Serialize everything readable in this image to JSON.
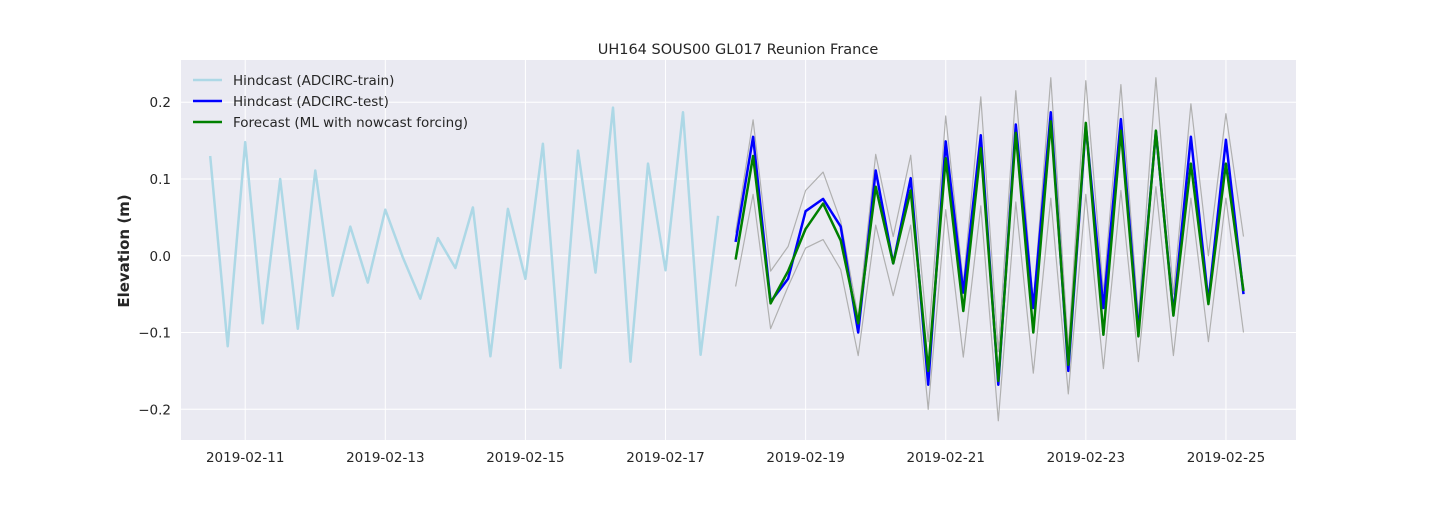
{
  "chart_data": {
    "type": "line",
    "title": "UH164 SOUS00 GL017 Reunion France",
    "xlabel": "",
    "ylabel": "Elevation (m)",
    "x_unit": "date",
    "xlim": [
      "2019-02-10T02:00",
      "2019-02-26T00:00"
    ],
    "ylim": [
      -0.24,
      0.255
    ],
    "xticks": [
      {
        "value": "2019-02-11T00:00",
        "label": "2019-02-11"
      },
      {
        "value": "2019-02-13T00:00",
        "label": "2019-02-13"
      },
      {
        "value": "2019-02-15T00:00",
        "label": "2019-02-15"
      },
      {
        "value": "2019-02-17T00:00",
        "label": "2019-02-17"
      },
      {
        "value": "2019-02-19T00:00",
        "label": "2019-02-19"
      },
      {
        "value": "2019-02-21T00:00",
        "label": "2019-02-21"
      },
      {
        "value": "2019-02-23T00:00",
        "label": "2019-02-23"
      },
      {
        "value": "2019-02-25T00:00",
        "label": "2019-02-25"
      }
    ],
    "yticks": [
      {
        "value": 0.2,
        "label": "0.2"
      },
      {
        "value": 0.1,
        "label": "0.1"
      },
      {
        "value": 0.0,
        "label": "0.0"
      },
      {
        "value": -0.1,
        "label": "−0.1"
      },
      {
        "value": -0.2,
        "label": "−0.2"
      }
    ],
    "grid": true,
    "legend_position": "top-left",
    "background": "#eaeaf2",
    "series": [
      {
        "name": "Hindcast (ADCIRC-train)",
        "color": "#add8e6",
        "in_legend": true,
        "x": [
          "2019-02-10T12:00",
          "2019-02-10T18:00",
          "2019-02-11T00:00",
          "2019-02-11T06:00",
          "2019-02-11T12:00",
          "2019-02-11T18:00",
          "2019-02-12T00:00",
          "2019-02-12T06:00",
          "2019-02-12T12:00",
          "2019-02-12T18:00",
          "2019-02-13T00:00",
          "2019-02-13T06:00",
          "2019-02-13T12:00",
          "2019-02-13T18:00",
          "2019-02-14T00:00",
          "2019-02-14T06:00",
          "2019-02-14T12:00",
          "2019-02-14T18:00",
          "2019-02-15T00:00",
          "2019-02-15T06:00",
          "2019-02-15T12:00",
          "2019-02-15T18:00",
          "2019-02-16T00:00",
          "2019-02-16T06:00",
          "2019-02-16T12:00",
          "2019-02-16T18:00",
          "2019-02-17T00:00",
          "2019-02-17T06:00",
          "2019-02-17T12:00",
          "2019-02-17T18:00"
        ],
        "y": [
          0.13,
          -0.118,
          0.148,
          -0.088,
          0.1,
          -0.095,
          0.111,
          -0.052,
          0.038,
          -0.035,
          0.06,
          -0.002,
          -0.056,
          0.023,
          -0.016,
          0.063,
          -0.131,
          0.061,
          -0.03,
          0.146,
          -0.146,
          0.137,
          -0.022,
          0.193,
          -0.138,
          0.12,
          -0.019,
          0.187,
          -0.129,
          0.052
        ]
      },
      {
        "name": "",
        "color": "#b0b0b0",
        "in_legend": false,
        "x": [
          "2019-02-18T00:00",
          "2019-02-18T06:00",
          "2019-02-18T12:00",
          "2019-02-18T18:00",
          "2019-02-19T00:00",
          "2019-02-19T06:00",
          "2019-02-19T12:00",
          "2019-02-19T18:00",
          "2019-02-20T00:00",
          "2019-02-20T06:00",
          "2019-02-20T12:00",
          "2019-02-20T18:00",
          "2019-02-21T00:00",
          "2019-02-21T06:00",
          "2019-02-21T12:00",
          "2019-02-21T18:00",
          "2019-02-22T00:00",
          "2019-02-22T06:00",
          "2019-02-22T12:00",
          "2019-02-22T18:00",
          "2019-02-23T00:00",
          "2019-02-23T06:00",
          "2019-02-23T12:00",
          "2019-02-23T18:00",
          "2019-02-24T00:00",
          "2019-02-24T06:00",
          "2019-02-24T12:00",
          "2019-02-24T18:00",
          "2019-02-25T00:00",
          "2019-02-25T06:00"
        ],
        "y": [
          0.03,
          0.177,
          -0.02,
          0.012,
          0.085,
          0.109,
          0.045,
          -0.08,
          0.132,
          0.025,
          0.131,
          -0.112,
          0.182,
          -0.036,
          0.207,
          -0.125,
          0.215,
          -0.062,
          0.232,
          -0.12,
          0.228,
          -0.048,
          0.223,
          -0.08,
          0.232,
          -0.05,
          0.198,
          0.0,
          0.185,
          0.025
        ]
      },
      {
        "name": "",
        "color": "#b0b0b0",
        "in_legend": false,
        "x": [
          "2019-02-18T00:00",
          "2019-02-18T06:00",
          "2019-02-18T12:00",
          "2019-02-18T18:00",
          "2019-02-19T00:00",
          "2019-02-19T06:00",
          "2019-02-19T12:00",
          "2019-02-19T18:00",
          "2019-02-20T00:00",
          "2019-02-20T06:00",
          "2019-02-20T12:00",
          "2019-02-20T18:00",
          "2019-02-21T00:00",
          "2019-02-21T06:00",
          "2019-02-21T12:00",
          "2019-02-21T18:00",
          "2019-02-22T00:00",
          "2019-02-22T06:00",
          "2019-02-22T12:00",
          "2019-02-22T18:00",
          "2019-02-23T00:00",
          "2019-02-23T06:00",
          "2019-02-23T12:00",
          "2019-02-23T18:00",
          "2019-02-24T00:00",
          "2019-02-24T06:00",
          "2019-02-24T12:00",
          "2019-02-24T18:00",
          "2019-02-25T00:00",
          "2019-02-25T06:00"
        ],
        "y": [
          -0.04,
          0.08,
          -0.095,
          -0.04,
          0.01,
          0.021,
          -0.018,
          -0.13,
          0.04,
          -0.052,
          0.04,
          -0.2,
          0.06,
          -0.132,
          0.065,
          -0.215,
          0.07,
          -0.153,
          0.075,
          -0.18,
          0.08,
          -0.147,
          0.085,
          -0.138,
          0.09,
          -0.13,
          0.075,
          -0.112,
          0.075,
          -0.1
        ]
      },
      {
        "name": "Hindcast (ADCIRC-test)",
        "color": "#0000ff",
        "in_legend": true,
        "x": [
          "2019-02-18T00:00",
          "2019-02-18T06:00",
          "2019-02-18T12:00",
          "2019-02-18T18:00",
          "2019-02-19T00:00",
          "2019-02-19T06:00",
          "2019-02-19T12:00",
          "2019-02-19T18:00",
          "2019-02-20T00:00",
          "2019-02-20T06:00",
          "2019-02-20T12:00",
          "2019-02-20T18:00",
          "2019-02-21T00:00",
          "2019-02-21T06:00",
          "2019-02-21T12:00",
          "2019-02-21T18:00",
          "2019-02-22T00:00",
          "2019-02-22T06:00",
          "2019-02-22T12:00",
          "2019-02-22T18:00",
          "2019-02-23T00:00",
          "2019-02-23T06:00",
          "2019-02-23T12:00",
          "2019-02-23T18:00",
          "2019-02-24T00:00",
          "2019-02-24T06:00",
          "2019-02-24T12:00",
          "2019-02-24T18:00",
          "2019-02-25T00:00",
          "2019-02-25T06:00"
        ],
        "y": [
          0.018,
          0.155,
          -0.06,
          -0.03,
          0.058,
          0.074,
          0.038,
          -0.1,
          0.111,
          -0.01,
          0.101,
          -0.168,
          0.149,
          -0.048,
          0.157,
          -0.168,
          0.171,
          -0.068,
          0.187,
          -0.15,
          0.17,
          -0.068,
          0.178,
          -0.098,
          0.162,
          -0.075,
          0.155,
          -0.06,
          0.151,
          -0.05
        ]
      },
      {
        "name": "Forecast (ML with nowcast forcing)",
        "color": "#008000",
        "in_legend": true,
        "x": [
          "2019-02-18T00:00",
          "2019-02-18T06:00",
          "2019-02-18T12:00",
          "2019-02-18T18:00",
          "2019-02-19T00:00",
          "2019-02-19T06:00",
          "2019-02-19T12:00",
          "2019-02-19T18:00",
          "2019-02-20T00:00",
          "2019-02-20T06:00",
          "2019-02-20T12:00",
          "2019-02-20T18:00",
          "2019-02-21T00:00",
          "2019-02-21T06:00",
          "2019-02-21T12:00",
          "2019-02-21T18:00",
          "2019-02-22T00:00",
          "2019-02-22T06:00",
          "2019-02-22T12:00",
          "2019-02-22T18:00",
          "2019-02-23T00:00",
          "2019-02-23T06:00",
          "2019-02-23T12:00",
          "2019-02-23T18:00",
          "2019-02-24T00:00",
          "2019-02-24T06:00",
          "2019-02-24T12:00",
          "2019-02-24T18:00",
          "2019-02-25T00:00",
          "2019-02-25T06:00"
        ],
        "y": [
          -0.005,
          0.13,
          -0.062,
          -0.02,
          0.035,
          0.068,
          0.02,
          -0.088,
          0.09,
          -0.01,
          0.085,
          -0.15,
          0.127,
          -0.072,
          0.14,
          -0.163,
          0.16,
          -0.1,
          0.175,
          -0.142,
          0.173,
          -0.103,
          0.163,
          -0.105,
          0.163,
          -0.078,
          0.12,
          -0.063,
          0.12,
          -0.046
        ]
      }
    ]
  }
}
